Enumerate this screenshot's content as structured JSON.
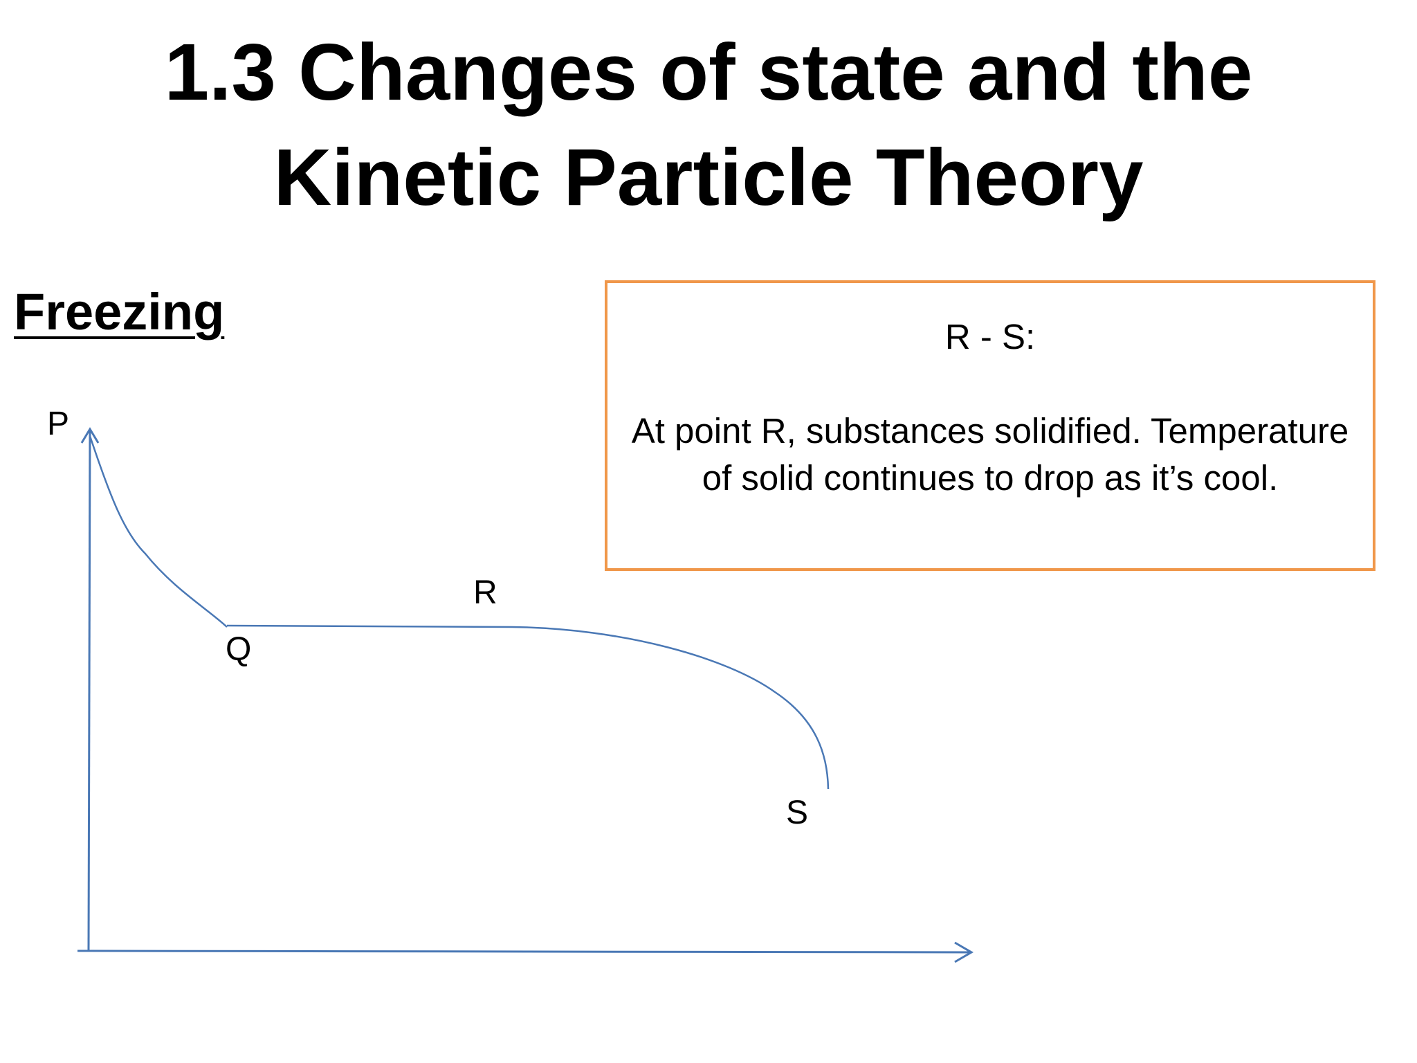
{
  "slide": {
    "title_line1": "1.3  Changes of state and the",
    "title_line2": "Kinetic Particle Theory",
    "subheading": "Freezing"
  },
  "infobox": {
    "title": "R - S:",
    "body": "At point R, substances solidified. Temperature of solid continues to drop as it’s cool."
  },
  "diagram": {
    "type": "cooling-curve",
    "points": [
      "P",
      "Q",
      "R",
      "S"
    ],
    "curve_color": "#4a78b5",
    "box_border_color": "#f0974a"
  }
}
